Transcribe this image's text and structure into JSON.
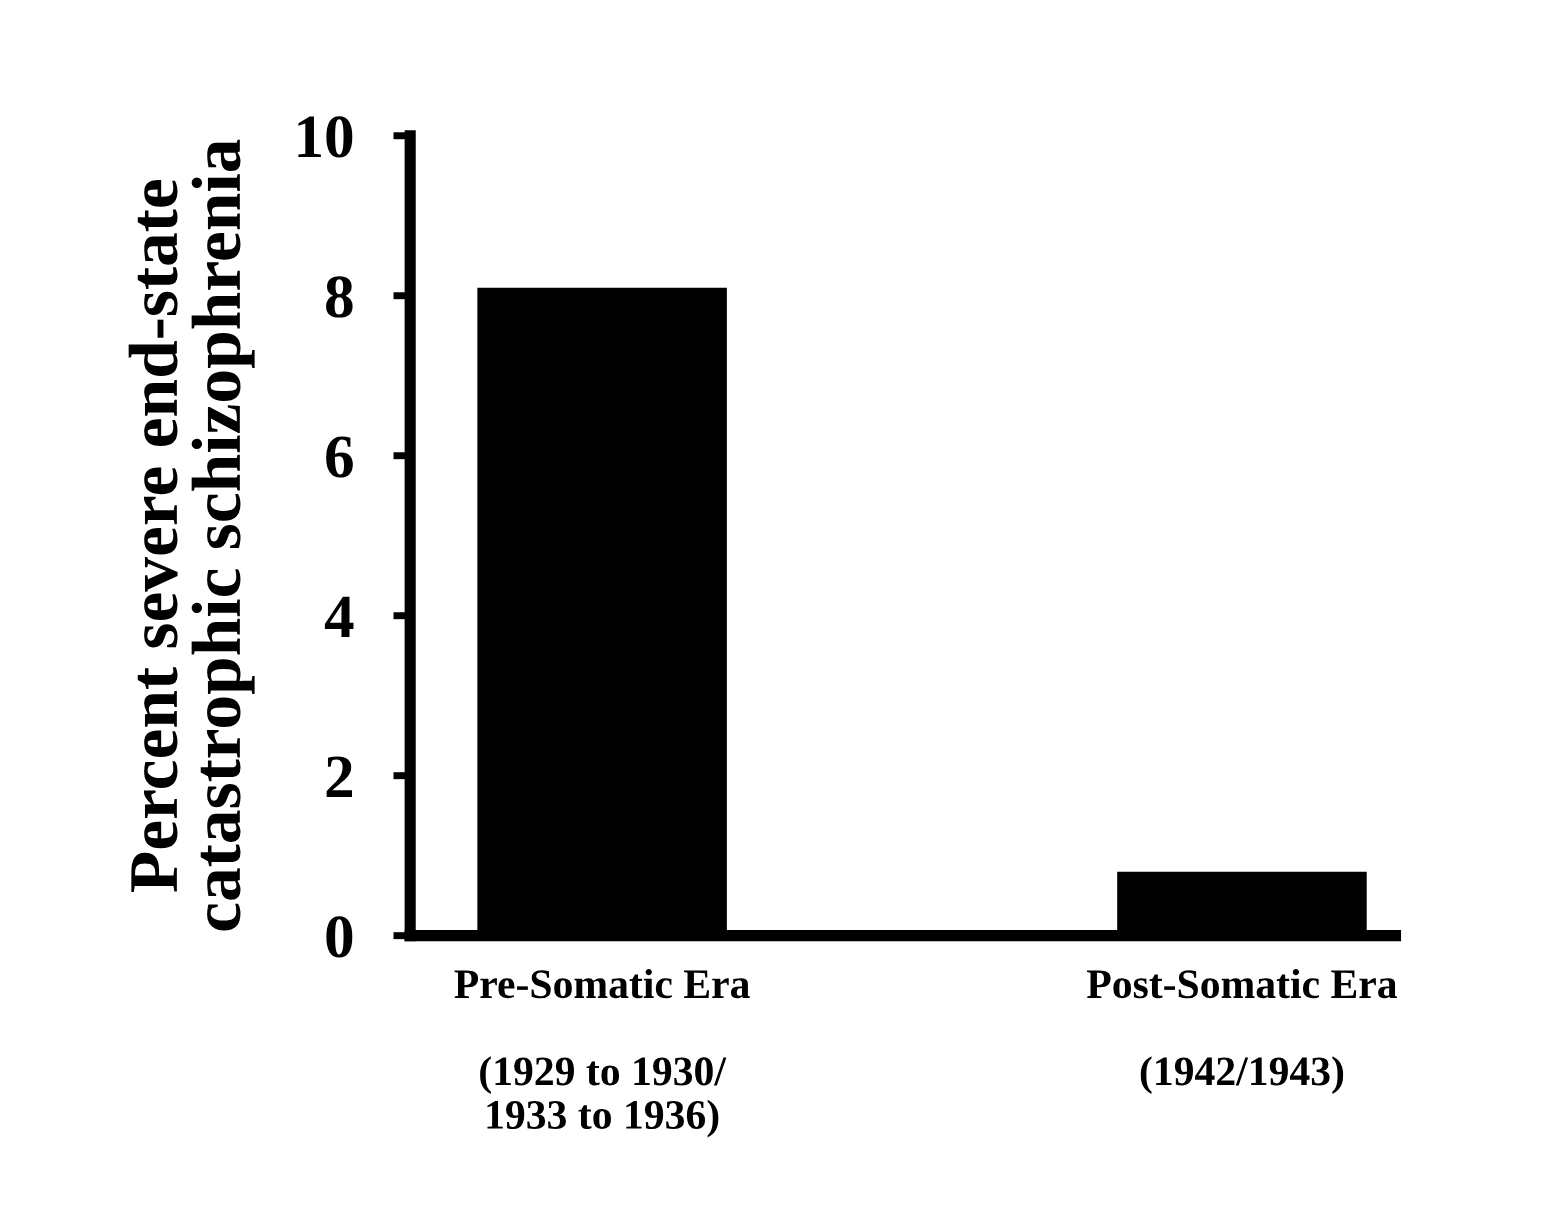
{
  "chart_data": {
    "type": "bar",
    "ylabel": "Percent severe end-state\ncatastrophic schizophrenia",
    "categories": [
      "Pre-Somatic Era\n\n(1929 to 1930/\n1933 to 1936)",
      "Post-Somatic Era\n\n(1942/1943)"
    ],
    "values": [
      8.1,
      0.8
    ],
    "color": "#000000",
    "ylim": [
      0,
      10
    ],
    "yticks": [
      0,
      2,
      4,
      6,
      8,
      10
    ],
    "grid": false
  }
}
